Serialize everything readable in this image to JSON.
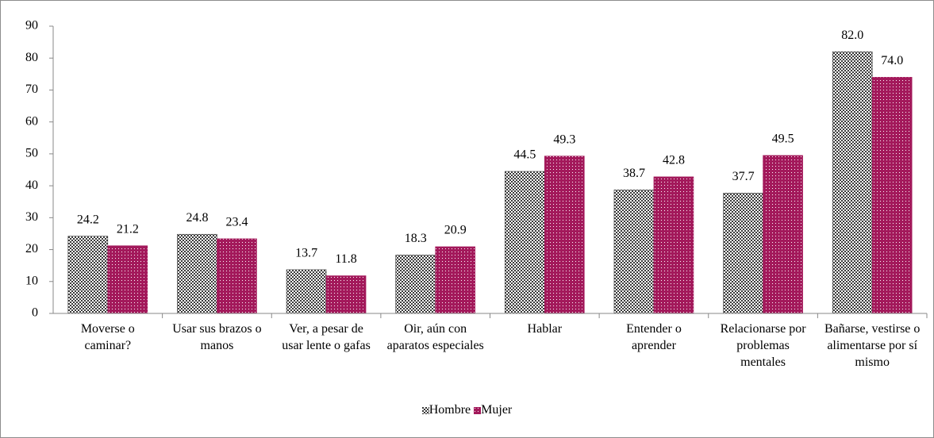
{
  "chart_data": {
    "type": "bar",
    "categories": [
      "Moverse o caminar?",
      "Usar sus brazos o manos",
      "Ver, a pesar de usar lente o gafas",
      "Oir, aún con aparatos especiales",
      "Hablar",
      "Entender o aprender",
      "Relacionarse por problemas mentales",
      "Bañarse, vestirse o alimentarse por sí mismo"
    ],
    "series": [
      {
        "name": "Hombre",
        "color": "#3a3a3a",
        "values": [
          24.2,
          24.8,
          13.7,
          18.3,
          44.5,
          38.7,
          37.7,
          82.0
        ],
        "value_labels": [
          "24.2",
          "24.8",
          "13.7",
          "18.3",
          "44.5",
          "38.7",
          "37.7",
          "82.0"
        ]
      },
      {
        "name": "Mujer",
        "color": "#a3195b",
        "values": [
          21.2,
          23.4,
          11.8,
          20.9,
          49.3,
          42.8,
          49.5,
          74.0
        ],
        "value_labels": [
          "21.2",
          "23.4",
          "11.8",
          "20.9",
          "49.3",
          "42.8",
          "49.5",
          "74.0"
        ]
      }
    ],
    "ylim": [
      0,
      90
    ],
    "yticks": [
      0,
      10,
      20,
      30,
      40,
      50,
      60,
      70,
      80,
      90
    ],
    "grid": false,
    "legend": "bottom"
  }
}
